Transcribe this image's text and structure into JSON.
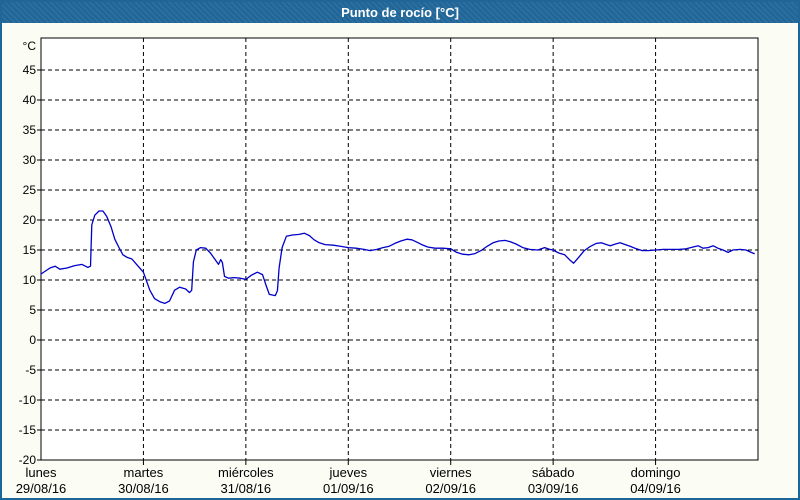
{
  "window": {
    "title": "Punto de rocío [°C]",
    "title_bar_color": "#1f6598",
    "border_color": "#1f6598",
    "content_background": "#fbfdf5"
  },
  "chart_data": {
    "type": "line",
    "title": "Punto de rocío [°C]",
    "ylabel": "Punto de rocío",
    "y_unit_label": "°C",
    "ylim": [
      -20,
      50
    ],
    "y_ticks": [
      45,
      40,
      35,
      30,
      25,
      20,
      15,
      10,
      5,
      0,
      -5,
      -10,
      -15,
      -20
    ],
    "grid": "dashed",
    "legend_position": "none",
    "line_color": "#0000c8",
    "x_days": [
      {
        "name": "lunes",
        "date": "29/08/16"
      },
      {
        "name": "martes",
        "date": "30/08/16"
      },
      {
        "name": "miércoles",
        "date": "31/08/16"
      },
      {
        "name": "jueves",
        "date": "01/09/16"
      },
      {
        "name": "viernes",
        "date": "02/09/16"
      },
      {
        "name": "sábado",
        "date": "03/09/16"
      },
      {
        "name": "domingo",
        "date": "04/09/16"
      }
    ],
    "x_unit": "hours_from_monday_00",
    "x_range_hours": [
      0,
      168
    ],
    "series": [
      {
        "name": "Punto de rocío",
        "points": [
          [
            0,
            11.0
          ],
          [
            2.1,
            12.0
          ],
          [
            3.3,
            12.3
          ],
          [
            4.4,
            11.8
          ],
          [
            6.1,
            12.0
          ],
          [
            7.9,
            12.4
          ],
          [
            9.6,
            12.6
          ],
          [
            11.0,
            12.1
          ],
          [
            11.6,
            12.3
          ],
          [
            11.9,
            19.2
          ],
          [
            12.6,
            20.8
          ],
          [
            13.6,
            21.5
          ],
          [
            14.5,
            21.5
          ],
          [
            15.4,
            20.6
          ],
          [
            16.4,
            18.9
          ],
          [
            17.3,
            16.8
          ],
          [
            18.2,
            15.5
          ],
          [
            19.2,
            14.2
          ],
          [
            20.1,
            13.8
          ],
          [
            21.3,
            13.5
          ],
          [
            22.4,
            12.6
          ],
          [
            24,
            11.3
          ],
          [
            25.5,
            8.3
          ],
          [
            26.6,
            6.9
          ],
          [
            27.8,
            6.4
          ],
          [
            29.0,
            6.1
          ],
          [
            30.1,
            6.5
          ],
          [
            31.3,
            8.3
          ],
          [
            32.5,
            8.8
          ],
          [
            33.9,
            8.5
          ],
          [
            34.8,
            7.9
          ],
          [
            35.3,
            8.3
          ],
          [
            35.7,
            13.0
          ],
          [
            36.4,
            15.0
          ],
          [
            37.4,
            15.4
          ],
          [
            38.6,
            15.3
          ],
          [
            39.7,
            14.5
          ],
          [
            40.9,
            13.3
          ],
          [
            41.6,
            12.6
          ],
          [
            42.1,
            13.4
          ],
          [
            42.5,
            12.9
          ],
          [
            43.0,
            10.6
          ],
          [
            43.9,
            10.3
          ],
          [
            45.3,
            10.4
          ],
          [
            46.7,
            10.3
          ],
          [
            48,
            10.1
          ],
          [
            49.3,
            10.8
          ],
          [
            50.7,
            11.3
          ],
          [
            51.9,
            10.9
          ],
          [
            52.8,
            9.0
          ],
          [
            53.5,
            7.6
          ],
          [
            54.9,
            7.4
          ],
          [
            55.4,
            8.2
          ],
          [
            55.8,
            12.0
          ],
          [
            56.5,
            15.4
          ],
          [
            57.5,
            17.3
          ],
          [
            58.9,
            17.5
          ],
          [
            60.5,
            17.6
          ],
          [
            61.7,
            17.8
          ],
          [
            62.9,
            17.4
          ],
          [
            64.0,
            16.7
          ],
          [
            65.2,
            16.2
          ],
          [
            66.6,
            15.9
          ],
          [
            68.5,
            15.8
          ],
          [
            70.3,
            15.6
          ],
          [
            72,
            15.4
          ],
          [
            73.8,
            15.3
          ],
          [
            75.7,
            15.1
          ],
          [
            77.1,
            14.9
          ],
          [
            78.7,
            15.1
          ],
          [
            80.1,
            15.4
          ],
          [
            81.5,
            15.6
          ],
          [
            82.9,
            16.1
          ],
          [
            84.3,
            16.5
          ],
          [
            85.7,
            16.8
          ],
          [
            86.9,
            16.7
          ],
          [
            88.1,
            16.3
          ],
          [
            89.2,
            15.9
          ],
          [
            90.6,
            15.5
          ],
          [
            92.3,
            15.3
          ],
          [
            94.1,
            15.3
          ],
          [
            96,
            15.2
          ],
          [
            97.4,
            14.6
          ],
          [
            98.8,
            14.3
          ],
          [
            100.3,
            14.2
          ],
          [
            101.7,
            14.4
          ],
          [
            103.1,
            14.9
          ],
          [
            104.5,
            15.6
          ],
          [
            105.9,
            16.2
          ],
          [
            107.3,
            16.5
          ],
          [
            108.7,
            16.6
          ],
          [
            109.9,
            16.4
          ],
          [
            111.3,
            16.0
          ],
          [
            112.9,
            15.4
          ],
          [
            114.5,
            15.1
          ],
          [
            116.4,
            15.0
          ],
          [
            118.0,
            15.4
          ],
          [
            119.2,
            15.1
          ],
          [
            120,
            15.0
          ],
          [
            121.3,
            14.5
          ],
          [
            122.7,
            14.2
          ],
          [
            123.8,
            13.4
          ],
          [
            124.8,
            12.8
          ],
          [
            125.9,
            13.7
          ],
          [
            127.3,
            14.9
          ],
          [
            128.7,
            15.6
          ],
          [
            130.1,
            16.1
          ],
          [
            131.3,
            16.2
          ],
          [
            132.5,
            15.9
          ],
          [
            133.4,
            15.7
          ],
          [
            134.6,
            16.0
          ],
          [
            135.7,
            16.2
          ],
          [
            136.9,
            15.9
          ],
          [
            138.1,
            15.6
          ],
          [
            139.5,
            15.2
          ],
          [
            140.9,
            14.9
          ],
          [
            142.3,
            14.9
          ],
          [
            144,
            15.0
          ],
          [
            145.8,
            15.1
          ],
          [
            147.7,
            15.1
          ],
          [
            149.5,
            15.1
          ],
          [
            151.2,
            15.2
          ],
          [
            152.8,
            15.5
          ],
          [
            154.0,
            15.7
          ],
          [
            155.1,
            15.3
          ],
          [
            156.3,
            15.4
          ],
          [
            157.5,
            15.7
          ],
          [
            158.6,
            15.3
          ],
          [
            159.8,
            15.0
          ],
          [
            161.0,
            14.6
          ],
          [
            162.1,
            15.0
          ],
          [
            163.8,
            15.1
          ],
          [
            165.2,
            15.0
          ],
          [
            166.4,
            14.6
          ],
          [
            167.1,
            14.4
          ]
        ]
      }
    ]
  }
}
